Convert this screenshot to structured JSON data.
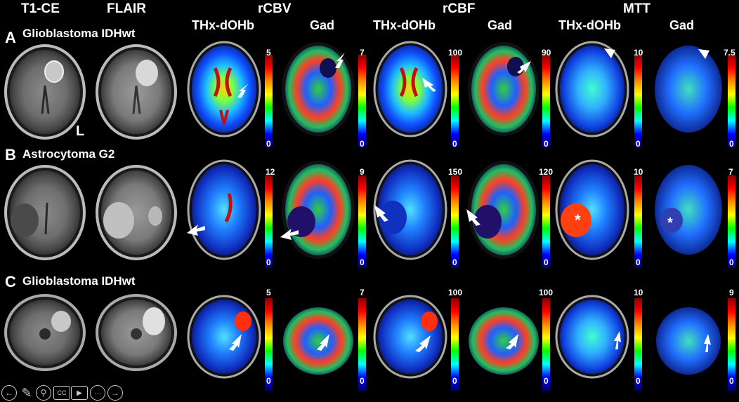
{
  "columns": {
    "t1ce": "T1-CE",
    "flair": "FLAIR",
    "rcbv": "rCBV",
    "rcbf": "rCBF",
    "mtt": "MTT"
  },
  "subcolumns": {
    "thx": "THx-dOHb",
    "gad": "Gad"
  },
  "rows": [
    {
      "letter": "A",
      "title": "Glioblastoma IDHwt",
      "scales": [
        {
          "top": "5",
          "bot": "0"
        },
        {
          "top": "7",
          "bot": "0"
        },
        {
          "top": "100",
          "bot": "0"
        },
        {
          "top": "90",
          "bot": "0"
        },
        {
          "top": "10",
          "bot": "0"
        },
        {
          "top": "7.5",
          "bot": "0"
        }
      ]
    },
    {
      "letter": "B",
      "title": "Astrocytoma G2",
      "scales": [
        {
          "top": "12",
          "bot": "0"
        },
        {
          "top": "9",
          "bot": "0"
        },
        {
          "top": "150",
          "bot": "0"
        },
        {
          "top": "120",
          "bot": "0"
        },
        {
          "top": "10",
          "bot": "0"
        },
        {
          "top": "7",
          "bot": "0"
        }
      ]
    },
    {
      "letter": "C",
      "title": "Glioblastoma IDHwt",
      "scales": [
        {
          "top": "5",
          "bot": "0"
        },
        {
          "top": "7",
          "bot": "0"
        },
        {
          "top": "100",
          "bot": "0"
        },
        {
          "top": "100",
          "bot": "0"
        },
        {
          "top": "10",
          "bot": "0"
        },
        {
          "top": "9",
          "bot": "0"
        }
      ]
    }
  ],
  "orientation_label": "L",
  "lesion_marker": "*",
  "toolbar": [
    "back-icon",
    "pen-icon",
    "zoom-icon",
    "captions-icon",
    "video-icon",
    "more-icon",
    "forward-icon"
  ],
  "toolbar_glyphs": {
    "back": "←",
    "pen": "✎",
    "zoom": "⚲",
    "captions": "CC",
    "video": "▶",
    "more": "···",
    "forward": "→"
  }
}
